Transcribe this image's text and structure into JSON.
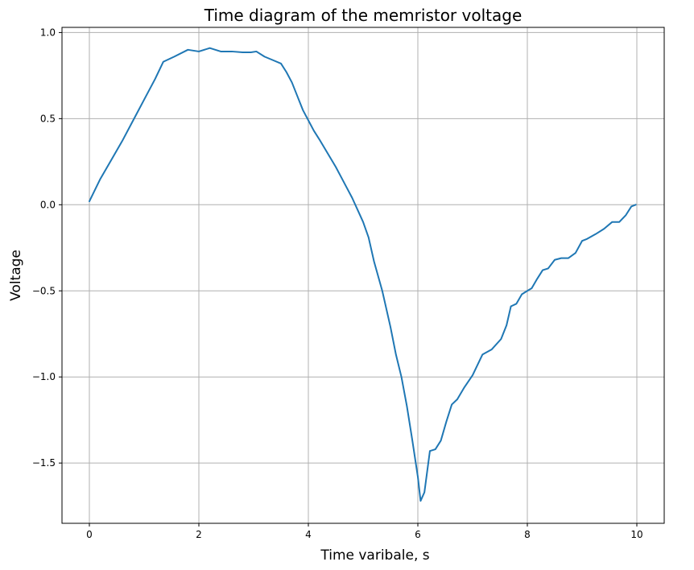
{
  "chart_data": {
    "type": "line",
    "title": "Time diagram of the memristor voltage",
    "xlabel": "Time varibale, s",
    "ylabel": "Voltage",
    "xlim": [
      -0.5,
      10.5
    ],
    "ylim": [
      -1.85,
      1.03
    ],
    "grid": true,
    "xticks": [
      0,
      2,
      4,
      6,
      8,
      10
    ],
    "xtick_labels": [
      "0",
      "2",
      "4",
      "6",
      "8",
      "10"
    ],
    "yticks": [
      -1.5,
      -1.0,
      -0.5,
      0.0,
      0.5,
      1.0
    ],
    "ytick_labels": [
      "−1.5",
      "−1.0",
      "−0.5",
      "0.0",
      "0.5",
      "1.0"
    ],
    "series": [
      {
        "color": "#1f77b4",
        "x": [
          0.0,
          0.2,
          0.4,
          0.6,
          0.8,
          1.0,
          1.2,
          1.35,
          1.55,
          1.8,
          2.0,
          2.2,
          2.4,
          2.6,
          2.8,
          2.95,
          3.05,
          3.2,
          3.35,
          3.5,
          3.6,
          3.7,
          3.8,
          3.9,
          4.0,
          4.1,
          4.2,
          4.35,
          4.5,
          4.6,
          4.7,
          4.8,
          4.9,
          5.0,
          5.1,
          5.2,
          5.35,
          5.5,
          5.6,
          5.7,
          5.8,
          5.9,
          6.0,
          6.05,
          6.12,
          6.22,
          6.32,
          6.42,
          6.52,
          6.62,
          6.72,
          6.85,
          7.0,
          7.18,
          7.35,
          7.52,
          7.62,
          7.7,
          7.8,
          7.9,
          8.0,
          8.08,
          8.18,
          8.28,
          8.38,
          8.5,
          8.62,
          8.75,
          8.88,
          9.0,
          9.08,
          9.25,
          9.4,
          9.55,
          9.68,
          9.8,
          9.9,
          9.98
        ],
        "y": [
          0.02,
          0.15,
          0.26,
          0.37,
          0.49,
          0.61,
          0.73,
          0.83,
          0.86,
          0.9,
          0.89,
          0.91,
          0.89,
          0.89,
          0.885,
          0.885,
          0.89,
          0.86,
          0.84,
          0.82,
          0.77,
          0.71,
          0.63,
          0.55,
          0.49,
          0.43,
          0.38,
          0.3,
          0.22,
          0.16,
          0.1,
          0.04,
          -0.03,
          -0.1,
          -0.19,
          -0.33,
          -0.5,
          -0.71,
          -0.87,
          -1.0,
          -1.17,
          -1.37,
          -1.58,
          -1.72,
          -1.67,
          -1.43,
          -1.42,
          -1.37,
          -1.26,
          -1.16,
          -1.13,
          -1.06,
          -0.99,
          -0.87,
          -0.84,
          -0.78,
          -0.7,
          -0.59,
          -0.575,
          -0.52,
          -0.5,
          -0.485,
          -0.43,
          -0.38,
          -0.37,
          -0.32,
          -0.31,
          -0.31,
          -0.28,
          -0.21,
          -0.2,
          -0.17,
          -0.14,
          -0.1,
          -0.1,
          -0.06,
          -0.01,
          0.0
        ]
      }
    ]
  }
}
